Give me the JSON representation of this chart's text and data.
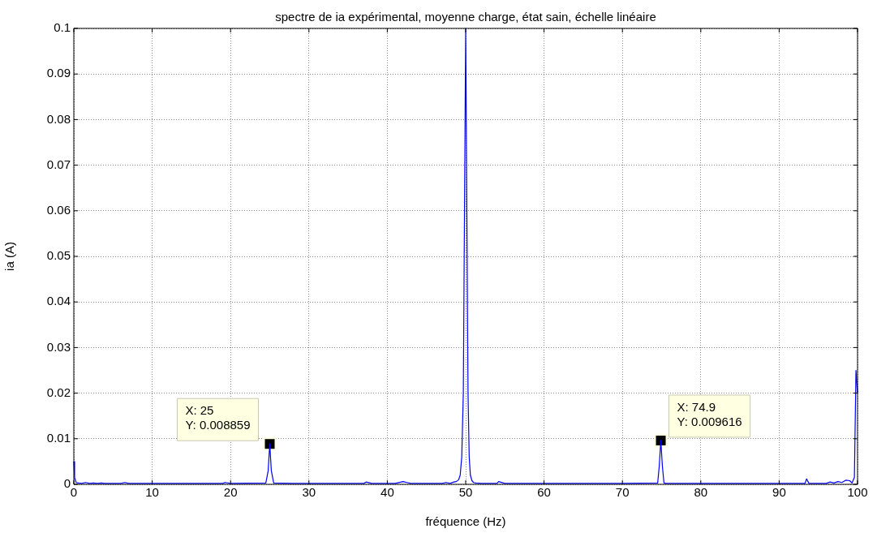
{
  "chart_data": {
    "type": "line",
    "title": "spectre de ia expérimental, moyenne charge, état sain, échelle linéaire",
    "xlabel": "fréquence (Hz)",
    "ylabel": "ia (A)",
    "x": [
      0,
      0.1,
      0.3,
      0.6,
      1,
      1.5,
      2,
      2.5,
      3,
      3.5,
      4,
      5,
      6,
      6.5,
      7,
      10,
      15,
      19,
      19.3,
      20,
      24.5,
      24.8,
      25,
      25.2,
      25.5,
      28,
      37,
      37.3,
      38,
      41,
      42,
      42.5,
      43,
      45,
      47,
      47.5,
      48,
      48.5,
      48.8,
      49.1,
      49.3,
      49.5,
      49.7,
      49.85,
      50,
      50.15,
      50.3,
      50.45,
      50.6,
      50.8,
      51,
      51.3,
      52,
      54,
      54.2,
      55,
      60,
      64,
      70,
      74.5,
      74.7,
      74.9,
      75.1,
      75.3,
      75.6,
      80,
      90,
      93.3,
      93.5,
      93.8,
      95,
      96,
      96.5,
      97,
      97.5,
      98,
      98.5,
      99,
      99.3,
      99.6,
      99.8,
      100
    ],
    "values": [
      0.005,
      0.0015,
      0.0004,
      0.0003,
      0.0002,
      0.0004,
      0.0002,
      0.0003,
      0.0002,
      0.0003,
      0.0002,
      0.0002,
      0.0002,
      0.0004,
      0.0002,
      0.0002,
      0.0002,
      0.0002,
      0.0004,
      0.0002,
      0.0003,
      0.003,
      0.008859,
      0.003,
      0.0003,
      0.0002,
      0.0002,
      0.0005,
      0.0002,
      0.0002,
      0.0006,
      0.0004,
      0.0002,
      0.0002,
      0.0002,
      0.0004,
      0.0002,
      0.0005,
      0.0006,
      0.001,
      0.002,
      0.006,
      0.02,
      0.06,
      0.1,
      0.06,
      0.02,
      0.006,
      0.002,
      0.0008,
      0.0004,
      0.0003,
      0.0002,
      0.0002,
      0.0006,
      0.0002,
      0.0002,
      0.0002,
      0.0002,
      0.0003,
      0.004,
      0.009616,
      0.004,
      0.0003,
      0.0002,
      0.0002,
      0.0002,
      0.0002,
      0.0012,
      0.0002,
      0.0002,
      0.0002,
      0.0005,
      0.0003,
      0.0006,
      0.0004,
      0.0009,
      0.0008,
      0.0003,
      0.0015,
      0.025,
      0.02
    ],
    "color": "#0000ff",
    "xlim": [
      0,
      100
    ],
    "xticks": [
      0,
      10,
      20,
      30,
      40,
      50,
      60,
      70,
      80,
      90,
      100
    ],
    "ylim": [
      0,
      0.1
    ],
    "yticks": [
      0,
      0.01,
      0.02,
      0.03,
      0.04,
      0.05,
      0.06,
      0.07,
      0.08,
      0.09,
      0.1
    ],
    "grid": true,
    "legend": false,
    "marker": "none",
    "line_style": "solid",
    "annotations": [
      {
        "text": "X: 25\nY: 0.008859",
        "x": 25,
        "y": 0.008859
      },
      {
        "text": "X: 74.9\nY: 0.009616",
        "x": 74.9,
        "y": 0.009616
      }
    ]
  }
}
